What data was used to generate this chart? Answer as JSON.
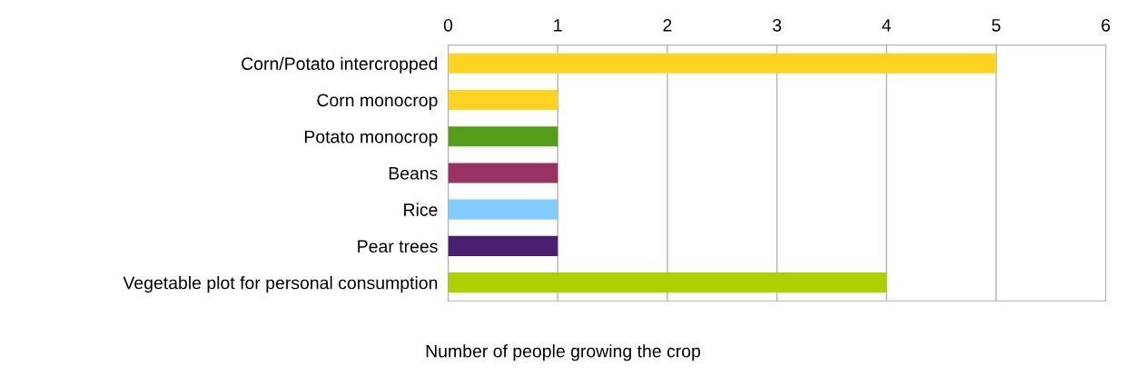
{
  "chart_data": {
    "type": "bar",
    "orientation": "horizontal",
    "xlabel": "Number of people growing the crop",
    "categories": [
      "Corn/Potato intercropped",
      "Corn monocrop",
      "Potato monocrop",
      "Beans",
      "Rice",
      "Pear trees",
      "Vegetable plot for personal consumption"
    ],
    "values": [
      5,
      1,
      1,
      1,
      1,
      1,
      4
    ],
    "colors": [
      "#ffd320",
      "#ffd320",
      "#579d1c",
      "#993366",
      "#83caff",
      "#4b1f6f",
      "#aecf00"
    ],
    "xlim": [
      0,
      6
    ],
    "xticks": [
      0,
      1,
      2,
      3,
      4,
      5,
      6
    ],
    "grid": "x"
  }
}
